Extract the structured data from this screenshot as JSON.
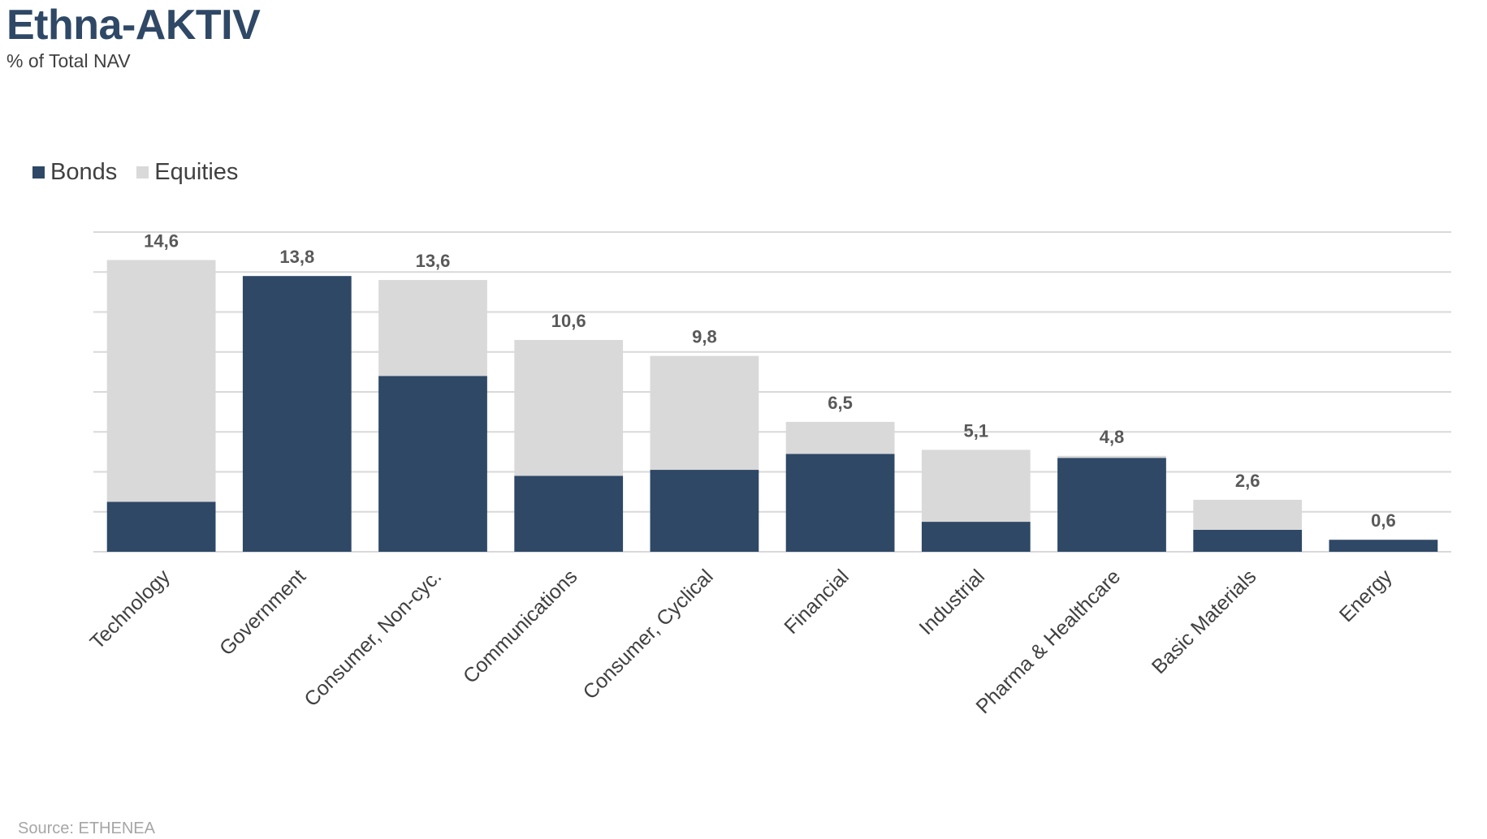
{
  "title": "Ethna-AKTIV",
  "subtitle": "% of Total NAV",
  "source": "Source: ETHENEA",
  "colors": {
    "bonds": "#2e4866",
    "equities": "#d9d9d9",
    "grid": "#d9d9d9",
    "label": "#595959",
    "axis_text": "#404040"
  },
  "legend": {
    "position": "top-left",
    "items": [
      {
        "label": "Bonds",
        "color": "#2e4866"
      },
      {
        "label": "Equities",
        "color": "#d9d9d9"
      }
    ]
  },
  "chart_data": {
    "type": "bar",
    "stacked": true,
    "categories": [
      "Technology",
      "Government",
      "Consumer, Non-cyc.",
      "Communications",
      "Consumer, Cyclical",
      "Financial",
      "Industrial",
      "Pharma & Healthcare",
      "Basic Materials",
      "Energy"
    ],
    "series": [
      {
        "name": "Bonds",
        "values": [
          2.5,
          13.8,
          8.8,
          3.8,
          4.1,
          4.9,
          1.5,
          4.7,
          1.1,
          0.6
        ]
      },
      {
        "name": "Equities",
        "values": [
          12.1,
          0.0,
          4.8,
          6.8,
          5.7,
          1.6,
          3.6,
          0.1,
          1.5,
          0.0
        ]
      }
    ],
    "totals": [
      "14,6",
      "13,8",
      "13,6",
      "10,6",
      "9,8",
      "6,5",
      "5,1",
      "4,8",
      "2,6",
      "0,6"
    ],
    "ylim": [
      0,
      16
    ],
    "grid": true,
    "xlabel": "",
    "ylabel": ""
  }
}
